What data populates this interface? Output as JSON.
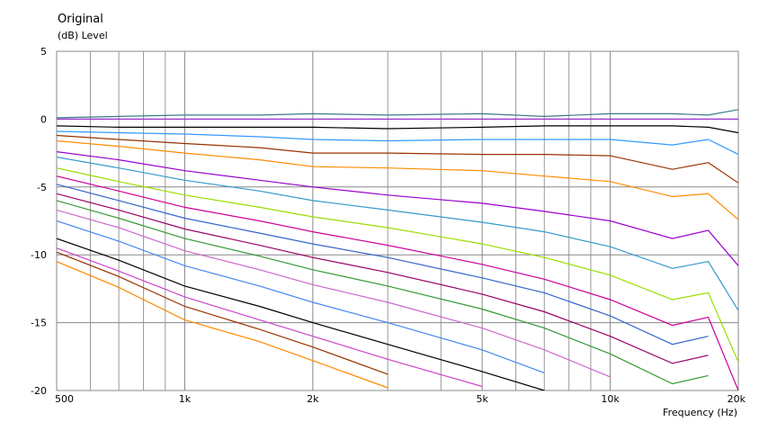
{
  "chart_data": {
    "type": "line",
    "title": "Original",
    "ylabel": "(dB)  Level",
    "xlabel": "Frequency  (Hz)",
    "log_x": true,
    "grid": true,
    "xlim": [
      500,
      20000
    ],
    "ylim": [
      -20,
      5
    ],
    "xticks": [
      {
        "value": 500,
        "label": "500"
      },
      {
        "value": 1000,
        "label": "1k"
      },
      {
        "value": 2000,
        "label": "2k"
      },
      {
        "value": 5000,
        "label": "5k"
      },
      {
        "value": 10000,
        "label": "10k"
      },
      {
        "value": 20000,
        "label": "20k"
      }
    ],
    "x_minor_grid": [
      600,
      700,
      800,
      900,
      3000,
      4000,
      6000,
      7000,
      8000,
      9000
    ],
    "yticks": [
      5,
      0,
      -5,
      -10,
      -15,
      -20
    ],
    "x": [
      500,
      700,
      1000,
      1500,
      2000,
      3000,
      5000,
      7000,
      10000,
      14000,
      17000,
      20000
    ],
    "series": [
      {
        "color": "#3a7a8a",
        "values": [
          0.1,
          0.2,
          0.3,
          0.3,
          0.4,
          0.3,
          0.4,
          0.2,
          0.4,
          0.4,
          0.3,
          0.7
        ]
      },
      {
        "color": "#9933cc",
        "values": [
          0,
          0,
          0,
          0,
          0,
          0,
          0,
          0,
          0,
          0,
          0,
          0
        ]
      },
      {
        "color": "#000000",
        "values": [
          -0.5,
          -0.6,
          -0.6,
          -0.6,
          -0.6,
          -0.7,
          -0.6,
          -0.5,
          -0.5,
          -0.5,
          -0.6,
          -1.0
        ]
      },
      {
        "color": "#3399ff",
        "values": [
          -0.9,
          -1.0,
          -1.1,
          -1.3,
          -1.5,
          -1.6,
          -1.5,
          -1.5,
          -1.5,
          -1.9,
          -1.5,
          -2.6
        ]
      },
      {
        "color": "#993300",
        "values": [
          -1.2,
          -1.5,
          -1.8,
          -2.1,
          -2.5,
          -2.5,
          -2.6,
          -2.6,
          -2.7,
          -3.7,
          -3.2,
          -4.7
        ]
      },
      {
        "color": "#ff8c00",
        "values": [
          -1.6,
          -2.0,
          -2.5,
          -3.0,
          -3.5,
          -3.6,
          -3.8,
          -4.2,
          -4.6,
          -5.7,
          -5.5,
          -7.4
        ]
      },
      {
        "color": "#9900cc",
        "values": [
          -2.4,
          -3.0,
          -3.8,
          -4.5,
          -5.0,
          -5.6,
          -6.2,
          -6.8,
          -7.5,
          -8.8,
          -8.2,
          -10.8
        ]
      },
      {
        "color": "#3399cc",
        "values": [
          -2.8,
          -3.6,
          -4.5,
          -5.3,
          -6.0,
          -6.7,
          -7.6,
          -8.3,
          -9.4,
          -11.0,
          -10.5,
          -14.1
        ]
      },
      {
        "color": "#99dd00",
        "values": [
          -3.6,
          -4.6,
          -5.6,
          -6.5,
          -7.2,
          -8.0,
          -9.2,
          -10.2,
          -11.5,
          -13.3,
          -12.8,
          -17.9
        ]
      },
      {
        "color": "#cc0099",
        "values": [
          -4.2,
          -5.3,
          -6.5,
          -7.5,
          -8.3,
          -9.3,
          -10.7,
          -11.8,
          -13.3,
          -15.2,
          -14.6,
          -20
        ]
      },
      {
        "color": "#3366cc",
        "values": [
          -4.8,
          -6.0,
          -7.3,
          -8.4,
          -9.2,
          -10.2,
          -11.7,
          -12.8,
          -14.5,
          -16.6,
          -16.0,
          null
        ]
      },
      {
        "color": "#990066",
        "values": [
          -5.5,
          -6.7,
          -8.1,
          -9.3,
          -10.2,
          -11.3,
          -12.9,
          -14.2,
          -16.0,
          -18.0,
          -17.4,
          null
        ]
      },
      {
        "color": "#339933",
        "values": [
          -6.0,
          -7.3,
          -8.8,
          -10.1,
          -11.1,
          -12.3,
          -14.0,
          -15.4,
          -17.3,
          -19.5,
          -18.9,
          null
        ]
      },
      {
        "color": "#cc66cc",
        "values": [
          -6.7,
          -8.0,
          -9.7,
          -11.1,
          -12.2,
          -13.5,
          -15.4,
          -17.0,
          -19.0,
          null,
          null,
          null
        ]
      },
      {
        "color": "#4488ee",
        "values": [
          -7.5,
          -9.0,
          -10.8,
          -12.3,
          -13.5,
          -15.0,
          -17.0,
          -18.7,
          null,
          null,
          null,
          null
        ]
      },
      {
        "color": "#000000",
        "values": [
          -8.8,
          -10.4,
          -12.3,
          -13.8,
          -15.0,
          -16.6,
          -18.6,
          -20,
          null,
          null,
          null,
          null
        ]
      },
      {
        "color": "#cc44cc",
        "values": [
          -9.5,
          -11.2,
          -13.1,
          -14.8,
          -16.0,
          -17.7,
          -19.7,
          null,
          null,
          null,
          null,
          null
        ]
      },
      {
        "color": "#993300",
        "values": [
          -9.8,
          -11.6,
          -13.8,
          -15.5,
          -16.8,
          -18.8,
          null,
          null,
          null,
          null,
          null,
          null
        ]
      },
      {
        "color": "#ff8800",
        "values": [
          -10.5,
          -12.4,
          -14.8,
          -16.4,
          -17.8,
          -19.8,
          null,
          null,
          null,
          null,
          null,
          null
        ]
      }
    ]
  }
}
